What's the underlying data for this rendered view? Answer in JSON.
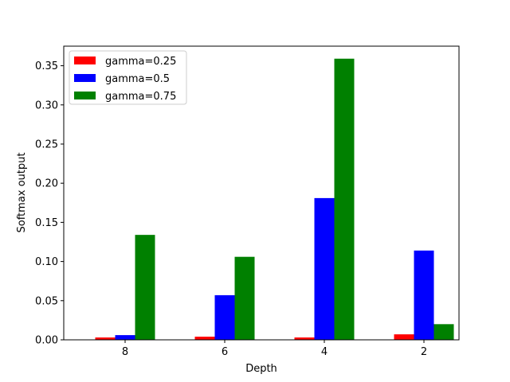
{
  "chart_data": {
    "type": "bar",
    "xlabel": "Depth",
    "ylabel": "Softmax output",
    "categories": [
      "8",
      "6",
      "4",
      "2"
    ],
    "ylim": [
      0,
      0.375
    ],
    "yticks": [
      "0.00",
      "0.05",
      "0.10",
      "0.15",
      "0.20",
      "0.25",
      "0.30",
      "0.35"
    ],
    "grid": false,
    "legend_position": "top-left",
    "series": [
      {
        "name": "gamma=0.25",
        "color": "#ff0000",
        "values": [
          0.003,
          0.004,
          0.003,
          0.007
        ]
      },
      {
        "name": "gamma=0.5",
        "color": "#0000ff",
        "values": [
          0.006,
          0.057,
          0.181,
          0.114
        ]
      },
      {
        "name": "gamma=0.75",
        "color": "#008000",
        "values": [
          0.134,
          0.106,
          0.359,
          0.02
        ]
      }
    ]
  }
}
